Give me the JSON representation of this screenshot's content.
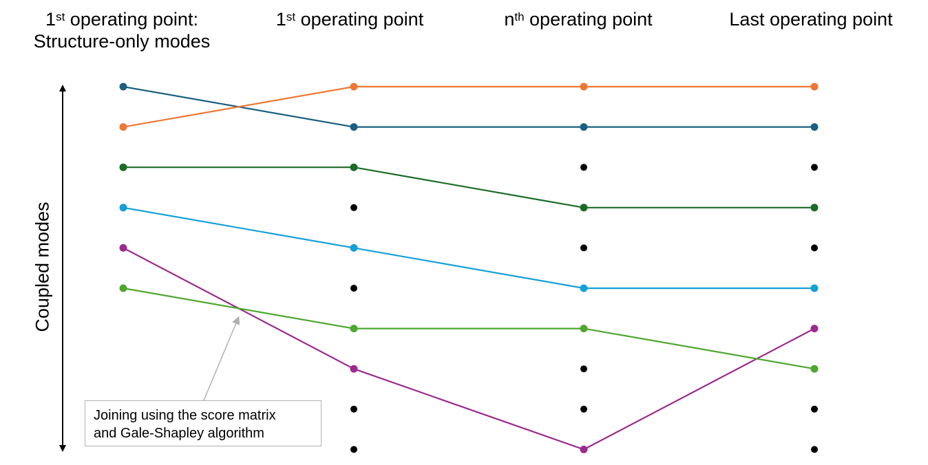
{
  "columns": [
    {
      "pre": "1",
      "sup": "st",
      "post": " operating point:",
      "line2": "Structure-only modes"
    },
    {
      "pre": "1",
      "sup": "st",
      "post": " operating point",
      "line2": ""
    },
    {
      "pre": "n",
      "sup": "th",
      "post": " operating point",
      "line2": ""
    },
    {
      "pre": "Last operating point",
      "sup": "",
      "post": "",
      "line2": ""
    }
  ],
  "axis_label": "Coupled modes",
  "axis_direction": "bidirectional vertical arrow",
  "annotation": {
    "line1": "Joining using the score matrix",
    "line2": "and Gale-Shapley algorithm"
  },
  "mode_rank_count": 10,
  "first_column_mode_count": 6,
  "tracks": [
    {
      "color": "#1a5f80",
      "ranks": [
        0,
        1,
        1,
        1
      ]
    },
    {
      "color": "#ed7633",
      "ranks": [
        1,
        0,
        0,
        0
      ]
    },
    {
      "color": "#1a6b25",
      "ranks": [
        2,
        2,
        3,
        3
      ]
    },
    {
      "color": "#139fd8",
      "ranks": [
        3,
        4,
        5,
        5
      ]
    },
    {
      "color": "#9c2a8e",
      "ranks": [
        4,
        7,
        9,
        6
      ]
    },
    {
      "color": "#4ea72e",
      "ranks": [
        5,
        6,
        6,
        7
      ]
    }
  ],
  "unmatched_color": "#000000"
}
